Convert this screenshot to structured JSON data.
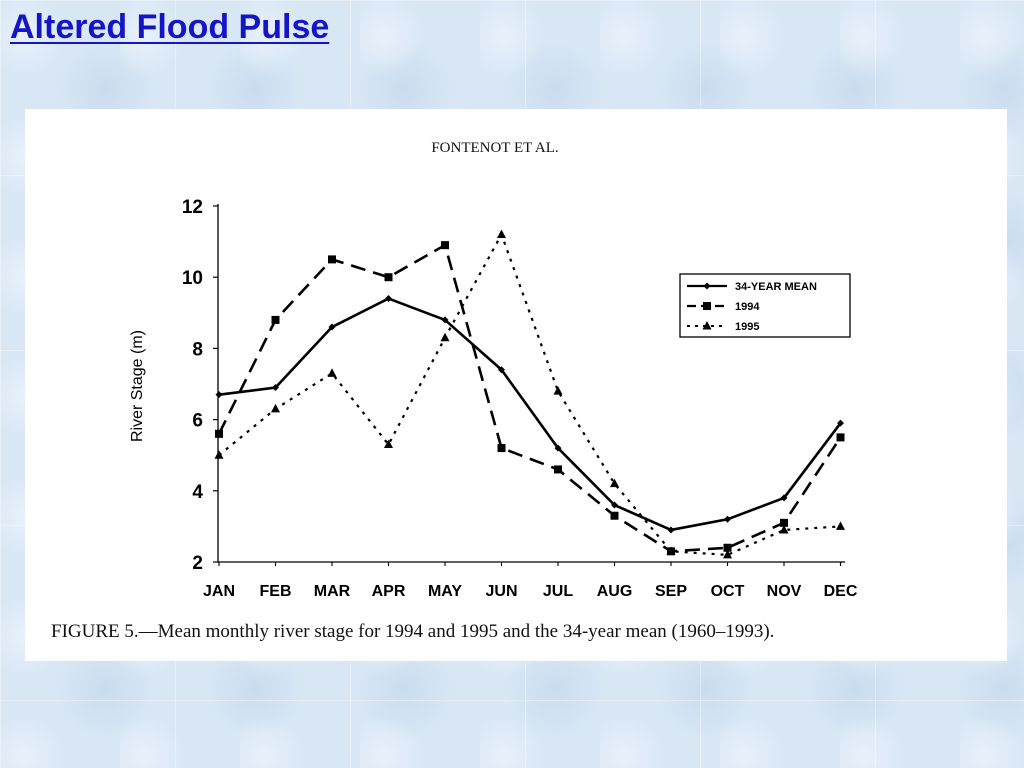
{
  "slide": {
    "title": "Altered Flood Pulse"
  },
  "figure": {
    "header": "FONTENOT ET AL.",
    "caption_prefix": "FIGURE",
    "caption_text": "5.—Mean monthly river stage for 1994 and 1995 and the 34-year mean (1960–1993)."
  },
  "chart_data": {
    "type": "line",
    "title": "",
    "xlabel": "",
    "ylabel": "River Stage (m)",
    "ylim": [
      2,
      12
    ],
    "yticks": [
      2,
      4,
      6,
      8,
      10,
      12
    ],
    "categories": [
      "JAN",
      "FEB",
      "MAR",
      "APR",
      "MAY",
      "JUN",
      "JUL",
      "AUG",
      "SEP",
      "OCT",
      "NOV",
      "DEC"
    ],
    "legend_position": "right",
    "grid": false,
    "series": [
      {
        "name": "34-YEAR MEAN",
        "marker": "diamond",
        "line": "solid",
        "values": [
          6.7,
          6.9,
          8.6,
          9.4,
          8.8,
          7.4,
          5.2,
          3.6,
          2.9,
          3.2,
          3.8,
          5.9
        ]
      },
      {
        "name": "1994",
        "marker": "square",
        "line": "dashed",
        "values": [
          5.6,
          8.8,
          10.5,
          10.0,
          10.9,
          5.2,
          4.6,
          3.3,
          2.3,
          2.4,
          3.1,
          5.5
        ]
      },
      {
        "name": "1995",
        "marker": "triangle",
        "line": "dotted",
        "values": [
          5.0,
          6.3,
          7.3,
          5.3,
          8.3,
          11.2,
          6.8,
          4.2,
          2.3,
          2.2,
          2.9,
          3.0
        ]
      }
    ]
  }
}
